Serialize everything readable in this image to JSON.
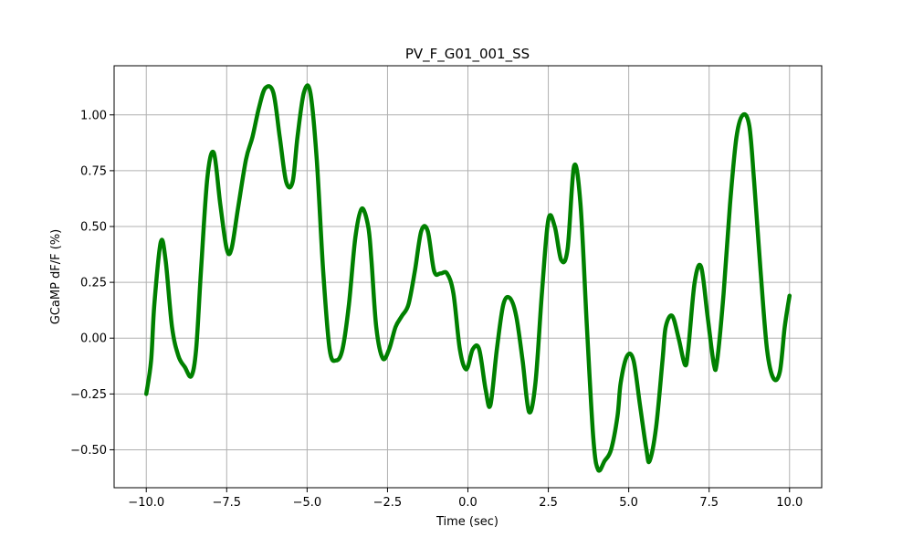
{
  "chart_data": {
    "type": "line",
    "title": "PV_F_G01_001_SS",
    "xlabel": "Time (sec)",
    "ylabel": "GCaMP dF/F (%)",
    "xlim": [
      -11.0,
      11.0
    ],
    "ylim": [
      -0.67,
      1.22
    ],
    "xticks": [
      -10.0,
      -7.5,
      -5.0,
      -2.5,
      0.0,
      2.5,
      5.0,
      7.5,
      10.0
    ],
    "xtick_labels": [
      "−10.0",
      "−7.5",
      "−5.0",
      "−2.5",
      "0.0",
      "2.5",
      "5.0",
      "7.5",
      "10.0"
    ],
    "yticks": [
      -0.5,
      -0.25,
      0.0,
      0.25,
      0.5,
      0.75,
      1.0
    ],
    "ytick_labels": [
      "−0.50",
      "−0.25",
      "0.00",
      "0.25",
      "0.50",
      "0.75",
      "1.00"
    ],
    "grid": true,
    "line_color": "#008000",
    "series": [
      {
        "x": [
          -10.0,
          -9.85,
          -9.75,
          -9.55,
          -9.4,
          -9.2,
          -9.0,
          -8.8,
          -8.6,
          -8.45,
          -8.3,
          -8.1,
          -7.9,
          -7.7,
          -7.5,
          -7.35,
          -7.15,
          -6.9,
          -6.7,
          -6.5,
          -6.3,
          -6.05,
          -5.85,
          -5.65,
          -5.45,
          -5.3,
          -5.1,
          -4.9,
          -4.7,
          -4.5,
          -4.3,
          -4.1,
          -3.9,
          -3.7,
          -3.5,
          -3.3,
          -3.1,
          -3.0,
          -2.85,
          -2.65,
          -2.45,
          -2.25,
          -2.05,
          -1.85,
          -1.65,
          -1.45,
          -1.25,
          -1.05,
          -0.85,
          -0.65,
          -0.45,
          -0.25,
          -0.05,
          0.15,
          0.35,
          0.55,
          0.7,
          0.9,
          1.1,
          1.3,
          1.5,
          1.7,
          1.9,
          2.1,
          2.3,
          2.5,
          2.7,
          2.9,
          3.1,
          3.3,
          3.5,
          3.7,
          3.9,
          4.05,
          4.25,
          4.45,
          4.65,
          4.75,
          4.95,
          5.15,
          5.35,
          5.55,
          5.65,
          5.85,
          6.05,
          6.15,
          6.35,
          6.55,
          6.75,
          6.85,
          7.05,
          7.25,
          7.45,
          7.65,
          7.75,
          7.95,
          8.15,
          8.35,
          8.55,
          8.75,
          8.9,
          9.1,
          9.3,
          9.5,
          9.7,
          9.85,
          10.0
        ],
        "y": [
          -0.25,
          -0.1,
          0.15,
          0.43,
          0.35,
          0.05,
          -0.08,
          -0.13,
          -0.17,
          -0.05,
          0.3,
          0.72,
          0.83,
          0.6,
          0.4,
          0.4,
          0.58,
          0.8,
          0.9,
          1.03,
          1.12,
          1.1,
          0.9,
          0.7,
          0.7,
          0.9,
          1.1,
          1.1,
          0.8,
          0.3,
          -0.05,
          -0.1,
          -0.05,
          0.15,
          0.45,
          0.58,
          0.5,
          0.35,
          0.05,
          -0.09,
          -0.05,
          0.05,
          0.1,
          0.15,
          0.3,
          0.48,
          0.48,
          0.3,
          0.29,
          0.29,
          0.2,
          -0.05,
          -0.14,
          -0.05,
          -0.05,
          -0.23,
          -0.3,
          -0.05,
          0.15,
          0.18,
          0.1,
          -0.1,
          -0.33,
          -0.2,
          0.2,
          0.53,
          0.5,
          0.35,
          0.4,
          0.77,
          0.6,
          0.05,
          -0.45,
          -0.59,
          -0.55,
          -0.5,
          -0.35,
          -0.2,
          -0.08,
          -0.1,
          -0.3,
          -0.5,
          -0.55,
          -0.4,
          -0.1,
          0.05,
          0.1,
          0.0,
          -0.12,
          -0.05,
          0.25,
          0.32,
          0.1,
          -0.12,
          -0.1,
          0.2,
          0.6,
          0.9,
          1.0,
          0.95,
          0.7,
          0.3,
          -0.05,
          -0.18,
          -0.15,
          0.05,
          0.19
        ]
      }
    ]
  }
}
